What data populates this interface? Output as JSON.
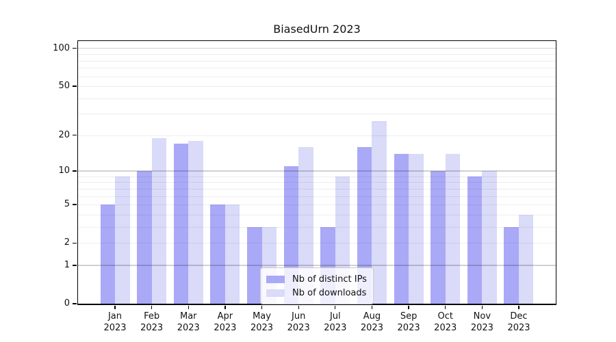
{
  "chart_data": {
    "type": "bar",
    "title": "BiasedUrn 2023",
    "categories": [
      "Jan",
      "Feb",
      "Mar",
      "Apr",
      "May",
      "Jun",
      "Jul",
      "Aug",
      "Sep",
      "Oct",
      "Nov",
      "Dec"
    ],
    "xtick_year": "2023",
    "series": [
      {
        "name": "Nb of distinct IPs",
        "color": "#a9a9f7",
        "values": [
          5,
          10,
          17,
          5,
          3,
          11,
          3,
          16,
          14,
          10,
          9,
          3
        ]
      },
      {
        "name": "Nb of downloads",
        "color": "#dadaf9",
        "values": [
          9,
          19,
          18,
          5,
          3,
          16,
          9,
          26,
          14,
          14,
          10,
          4
        ]
      }
    ],
    "yscale": "log1p",
    "ylim": [
      0,
      114.4
    ],
    "yticks": [
      0,
      1,
      2,
      5,
      10,
      20,
      50,
      100
    ],
    "major_gridlines": [
      1,
      10,
      100
    ],
    "minor_gridlines": [
      2,
      3,
      4,
      5,
      6,
      7,
      8,
      9,
      20,
      30,
      40,
      50,
      60,
      70,
      80,
      90
    ],
    "legend_position": "lower center",
    "grid": true,
    "axis_color": "#000000",
    "background": "#ffffff"
  }
}
